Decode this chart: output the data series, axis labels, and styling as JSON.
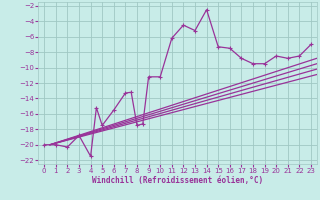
{
  "xlabel": "Windchill (Refroidissement éolien,°C)",
  "background_color": "#c8ece8",
  "grid_color": "#a0c8c4",
  "line_color": "#993399",
  "xlim": [
    -0.5,
    23.5
  ],
  "ylim": [
    -22.5,
    -1.5
  ],
  "xticks": [
    0,
    1,
    2,
    3,
    4,
    5,
    6,
    7,
    8,
    9,
    10,
    11,
    12,
    13,
    14,
    15,
    16,
    17,
    18,
    19,
    20,
    21,
    22,
    23
  ],
  "yticks": [
    -2,
    -4,
    -6,
    -8,
    -10,
    -12,
    -14,
    -16,
    -18,
    -20,
    -22
  ],
  "series": [
    [
      0,
      -20.0
    ],
    [
      1,
      -20.0
    ],
    [
      2,
      -20.3
    ],
    [
      3,
      -18.8
    ],
    [
      4,
      -21.5
    ],
    [
      4.5,
      -15.2
    ],
    [
      5,
      -17.5
    ],
    [
      6,
      -15.5
    ],
    [
      7,
      -13.3
    ],
    [
      7.5,
      -13.2
    ],
    [
      8,
      -17.5
    ],
    [
      8.5,
      -17.3
    ],
    [
      9,
      -11.2
    ],
    [
      10,
      -11.2
    ],
    [
      11,
      -6.2
    ],
    [
      12,
      -4.5
    ],
    [
      13,
      -5.2
    ],
    [
      14,
      -2.5
    ],
    [
      15,
      -7.3
    ],
    [
      16,
      -7.5
    ],
    [
      17,
      -8.8
    ],
    [
      18,
      -9.5
    ],
    [
      19,
      -9.5
    ],
    [
      20,
      -8.5
    ],
    [
      21,
      -8.8
    ],
    [
      22,
      -8.5
    ],
    [
      23,
      -7.0
    ]
  ],
  "diag_lines": [
    {
      "x0": 0.5,
      "y0": -20.0,
      "x1": 23.5,
      "y1": -8.8
    },
    {
      "x0": 0.5,
      "y0": -20.0,
      "x1": 23.5,
      "y1": -9.5
    },
    {
      "x0": 0.5,
      "y0": -20.0,
      "x1": 23.5,
      "y1": -10.2
    },
    {
      "x0": 0.5,
      "y0": -20.0,
      "x1": 23.5,
      "y1": -10.9
    }
  ],
  "xlabel_fontsize": 5.5,
  "tick_fontsize": 5.0
}
